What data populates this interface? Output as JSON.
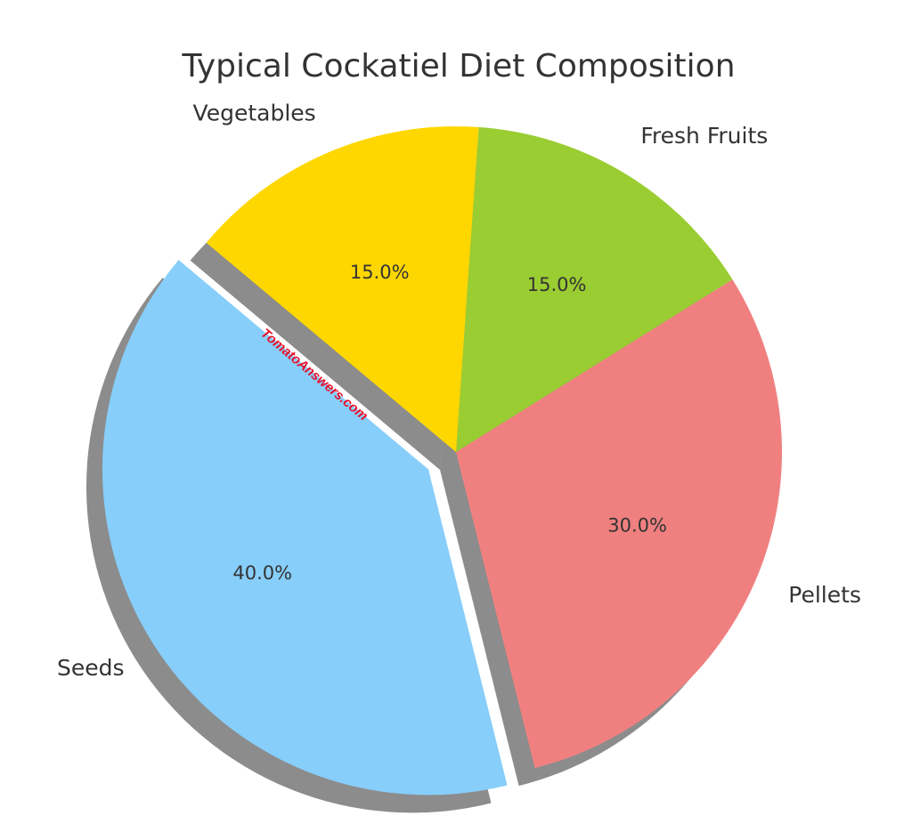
{
  "chart_data": {
    "type": "pie",
    "title": "Typical Cockatiel Diet Composition",
    "start_angle_deg": 140,
    "counterclockwise": true,
    "shadow": true,
    "slices": [
      {
        "label": "Seeds",
        "value": 40.0,
        "pct_label": "40.0%",
        "color": "#87cefa",
        "explode": true
      },
      {
        "label": "Pellets",
        "value": 30.0,
        "pct_label": "30.0%",
        "color": "#f08080",
        "explode": false
      },
      {
        "label": "Fresh Fruits",
        "value": 15.0,
        "pct_label": "15.0%",
        "color": "#9acd32",
        "explode": false
      },
      {
        "label": "Vegetables",
        "value": 15.0,
        "pct_label": "15.0%",
        "color": "#ffd700",
        "explode": false
      }
    ]
  },
  "watermark": "TomatoAnswers.com"
}
